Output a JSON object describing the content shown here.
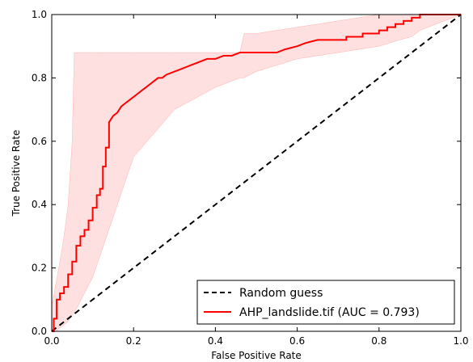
{
  "chart_data": {
    "type": "line",
    "xlabel": "False Positive Rate",
    "ylabel": "True Positive Rate",
    "xlim": [
      0.0,
      1.0
    ],
    "ylim": [
      0.0,
      1.0
    ],
    "x_ticks": [
      "0.0",
      "0.2",
      "0.4",
      "0.6",
      "0.8",
      "1.0"
    ],
    "y_ticks": [
      "0.0",
      "0.2",
      "0.4",
      "0.6",
      "0.8",
      "1.0"
    ],
    "grid": false,
    "legend": {
      "position": "lower-right",
      "entries": [
        {
          "label": "Random guess",
          "color": "#000000",
          "style": "dashed"
        },
        {
          "label": "AHP_landslide.tif (AUC = 0.793)",
          "color": "#ff0000",
          "style": "solid"
        }
      ]
    },
    "series": [
      {
        "name": "AHP_landslide.tif (AUC = 0.793)",
        "color": "#ff0000",
        "x": [
          0.0,
          0.005,
          0.005,
          0.012,
          0.012,
          0.02,
          0.02,
          0.03,
          0.03,
          0.04,
          0.04,
          0.05,
          0.05,
          0.06,
          0.06,
          0.07,
          0.07,
          0.08,
          0.08,
          0.09,
          0.09,
          0.1,
          0.1,
          0.11,
          0.11,
          0.118,
          0.118,
          0.125,
          0.125,
          0.132,
          0.132,
          0.14,
          0.14,
          0.15,
          0.16,
          0.17,
          0.18,
          0.19,
          0.2,
          0.21,
          0.22,
          0.23,
          0.24,
          0.25,
          0.26,
          0.27,
          0.28,
          0.3,
          0.32,
          0.34,
          0.36,
          0.38,
          0.4,
          0.42,
          0.44,
          0.46,
          0.47,
          0.5,
          0.55,
          0.57,
          0.57,
          0.6,
          0.6,
          0.62,
          0.62,
          0.65,
          0.65,
          0.72,
          0.72,
          0.76,
          0.76,
          0.8,
          0.8,
          0.82,
          0.82,
          0.84,
          0.84,
          0.86,
          0.86,
          0.88,
          0.88,
          0.9,
          0.9,
          0.93,
          0.93,
          1.0
        ],
        "y": [
          0.0,
          0.0,
          0.04,
          0.04,
          0.1,
          0.1,
          0.12,
          0.12,
          0.14,
          0.14,
          0.18,
          0.18,
          0.22,
          0.22,
          0.27,
          0.27,
          0.3,
          0.3,
          0.32,
          0.32,
          0.35,
          0.35,
          0.39,
          0.39,
          0.43,
          0.43,
          0.45,
          0.45,
          0.52,
          0.52,
          0.58,
          0.58,
          0.66,
          0.68,
          0.69,
          0.71,
          0.72,
          0.73,
          0.74,
          0.75,
          0.76,
          0.77,
          0.78,
          0.79,
          0.8,
          0.8,
          0.81,
          0.82,
          0.83,
          0.84,
          0.85,
          0.86,
          0.86,
          0.87,
          0.87,
          0.88,
          0.88,
          0.88,
          0.88,
          0.89,
          0.89,
          0.9,
          0.9,
          0.91,
          0.91,
          0.92,
          0.92,
          0.92,
          0.93,
          0.93,
          0.94,
          0.94,
          0.95,
          0.95,
          0.96,
          0.96,
          0.97,
          0.97,
          0.98,
          0.98,
          0.99,
          0.99,
          1.0,
          1.0,
          1.0,
          1.0
        ]
      },
      {
        "name": "Random guess",
        "color": "#000000",
        "style": "dashed",
        "x": [
          0.0,
          1.0
        ],
        "y": [
          0.0,
          1.0
        ]
      }
    ],
    "band": {
      "color": "#ffdada",
      "x": [
        0.0,
        0.01,
        0.02,
        0.03,
        0.04,
        0.05,
        0.055,
        0.06,
        0.1,
        0.2,
        0.3,
        0.4,
        0.46,
        0.47,
        0.5,
        0.55,
        0.6,
        0.65,
        0.7,
        0.75,
        0.8,
        0.85,
        0.88,
        0.9,
        1.0
      ],
      "upper": [
        0.08,
        0.15,
        0.22,
        0.3,
        0.4,
        0.6,
        0.88,
        0.88,
        0.88,
        0.88,
        0.88,
        0.88,
        0.88,
        0.94,
        0.94,
        0.95,
        0.96,
        0.97,
        0.98,
        0.99,
        1.0,
        1.0,
        1.0,
        1.0,
        1.0
      ],
      "lower": [
        0.0,
        0.0,
        0.01,
        0.02,
        0.03,
        0.05,
        0.06,
        0.07,
        0.17,
        0.55,
        0.7,
        0.77,
        0.8,
        0.8,
        0.82,
        0.84,
        0.86,
        0.87,
        0.88,
        0.89,
        0.9,
        0.92,
        0.93,
        0.95,
        1.0
      ]
    }
  }
}
